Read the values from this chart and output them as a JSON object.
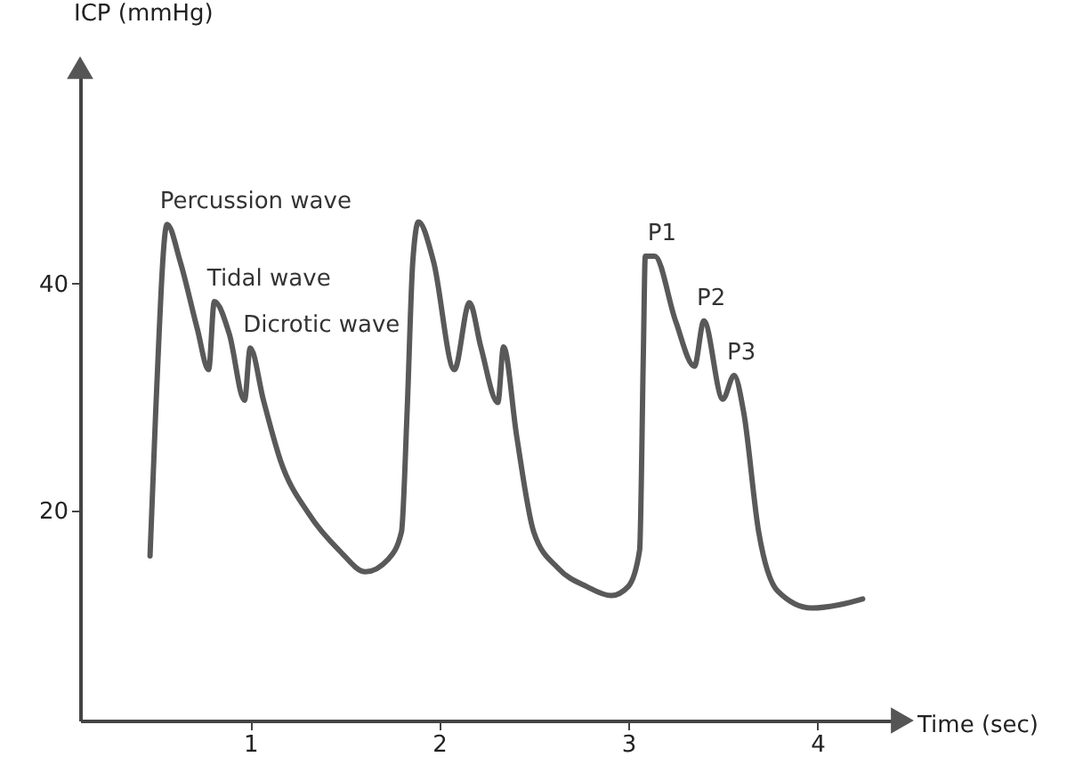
{
  "chart_data": {
    "type": "line",
    "xlabel": "Time (sec)",
    "ylabel": "ICP (mmHg)",
    "xlim": [
      0.1,
      4.45
    ],
    "ylim": [
      1.5,
      59
    ],
    "xticks": [
      1,
      2,
      3,
      4
    ],
    "yticks": [
      20,
      40
    ],
    "grid": false,
    "marker": "none",
    "line_style": "solid",
    "x": [
      0.47,
      0.5,
      0.56,
      0.63,
      0.72,
      0.78,
      0.81,
      0.89,
      0.97,
      1.0,
      1.07,
      1.16,
      1.31,
      1.47,
      1.61,
      1.73,
      1.8,
      1.83,
      1.86,
      1.89,
      1.97,
      2.08,
      2.16,
      2.22,
      2.31,
      2.34,
      2.41,
      2.5,
      2.63,
      2.78,
      2.91,
      3.0,
      3.06,
      3.08,
      3.09,
      3.14,
      3.25,
      3.35,
      3.4,
      3.5,
      3.56,
      3.61,
      3.69,
      3.79,
      3.97,
      4.12,
      4.24
    ],
    "series": [
      {
        "color": "#595959",
        "values": [
          16.0,
          28.7,
          45.2,
          41.9,
          36.0,
          32.4,
          38.4,
          35.5,
          29.7,
          34.3,
          29.7,
          24.4,
          19.7,
          16.5,
          14.6,
          15.7,
          18.1,
          28.7,
          41.9,
          45.4,
          41.9,
          32.4,
          38.3,
          34.4,
          29.5,
          34.4,
          26.5,
          18.1,
          14.9,
          13.3,
          12.5,
          13.3,
          16.5,
          34.0,
          42.4,
          42.4,
          36.7,
          32.7,
          36.7,
          29.8,
          31.9,
          28.7,
          18.1,
          12.9,
          11.4,
          11.7,
          12.2
        ]
      }
    ],
    "annotations": [
      {
        "text": "Percussion wave",
        "x": 0.56,
        "y": 45.2
      },
      {
        "text": "Tidal wave",
        "x": 0.81,
        "y": 38.4
      },
      {
        "text": "Dicrotic wave",
        "x": 1.0,
        "y": 34.3
      },
      {
        "text": "P1",
        "x": 3.14,
        "y": 42.4
      },
      {
        "text": "P2",
        "x": 3.4,
        "y": 36.7
      },
      {
        "text": "P3",
        "x": 3.56,
        "y": 31.9
      }
    ]
  }
}
